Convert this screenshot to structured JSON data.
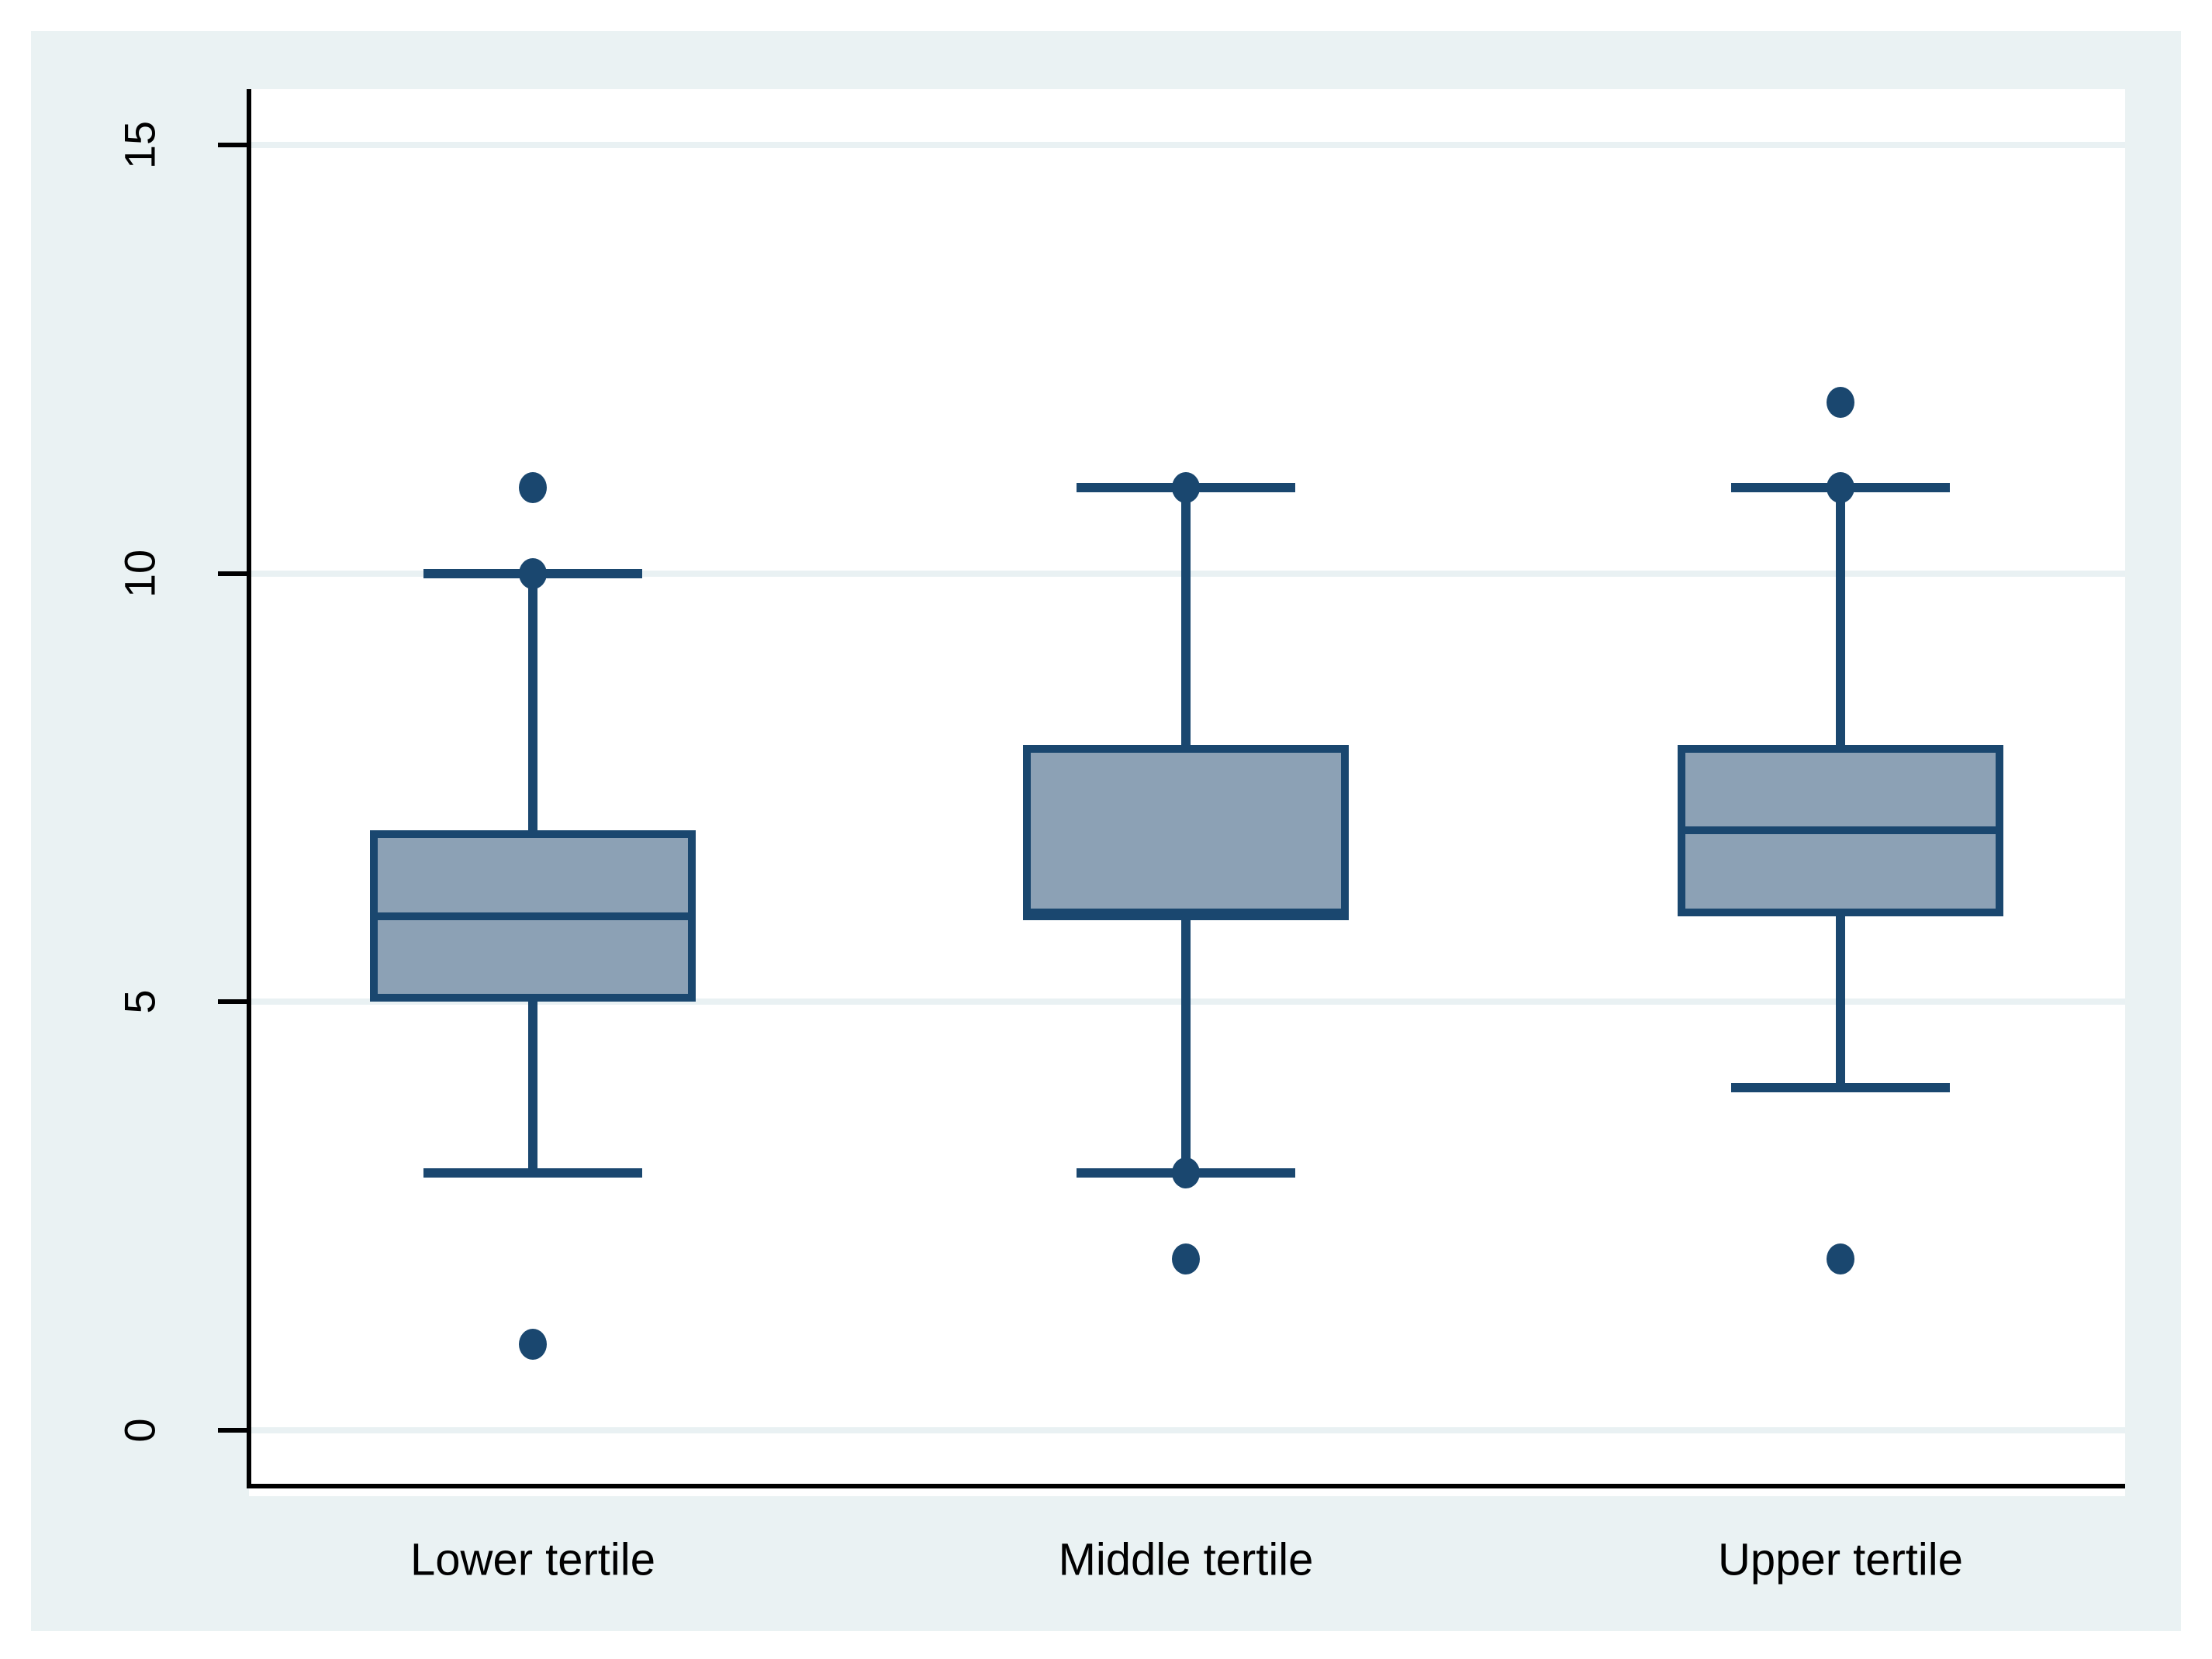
{
  "figure": {
    "page_bg": "#ffffff",
    "canvas_bg": "#eaf2f3",
    "plot_bg": "#ffffff",
    "grid_color": "#e9f1f3",
    "axis_color": "#000000",
    "text_color": "#000000",
    "line_color": "#1a476f",
    "box_fill": "#8ca1b5"
  },
  "y_axis": {
    "tick_labels": [
      "0",
      "5",
      "10",
      "15"
    ]
  },
  "x_axis": {
    "category_labels": [
      "Lower tertile",
      "Middle tertile",
      "Upper tertile"
    ]
  },
  "chart_data": {
    "type": "box",
    "title": "",
    "xlabel": "",
    "ylabel": "",
    "categories": [
      "Lower tertile",
      "Middle tertile",
      "Upper tertile"
    ],
    "y_ticks": [
      0,
      5,
      10,
      15
    ],
    "ylim": [
      -0.65,
      15.65
    ],
    "grid": true,
    "legend_position": "none",
    "boxes": [
      {
        "category": "Lower tertile",
        "q1": 5,
        "median": 6,
        "q3": 7,
        "whisker_low": 3,
        "whisker_high": 10,
        "dots": [
          11,
          10,
          1
        ]
      },
      {
        "category": "Middle tertile",
        "q1": 6,
        "median": 6,
        "q3": 8,
        "whisker_low": 3,
        "whisker_high": 11,
        "dots": [
          11,
          3,
          2
        ]
      },
      {
        "category": "Upper tertile",
        "q1": 6,
        "median": 7,
        "q3": 8,
        "whisker_low": 4,
        "whisker_high": 11,
        "dots": [
          12,
          11,
          2
        ]
      }
    ]
  }
}
